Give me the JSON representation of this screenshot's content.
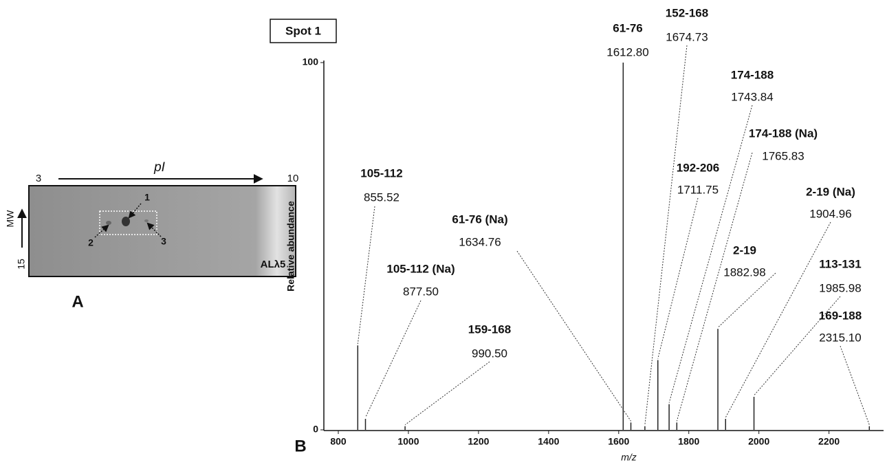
{
  "gel": {
    "axis_label": "pI",
    "left_ph": "3",
    "right_ph": "10",
    "mw_label": "MW",
    "mw_value": "15",
    "sample": "ALλ5",
    "spots": [
      "1",
      "2",
      "3"
    ],
    "panel": "A"
  },
  "chart_data": {
    "type": "spectrum",
    "panel": "B",
    "title": "Spot 1",
    "x_label": "m/z",
    "y_label": "Relative abundance",
    "x": [
      855.52,
      877.5,
      990.5,
      1612.8,
      1634.76,
      1674.73,
      1711.75,
      1743.84,
      1765.83,
      1882.98,
      1904.96,
      1985.98,
      2315.1
    ],
    "x_labels": [
      "855.52",
      "877.50",
      "990.50",
      "1612.80",
      "1634.76",
      "1674.73",
      "1711.75",
      "1743.84",
      "1765.83",
      "1882.98",
      "1904.96",
      "1985.98",
      "2315.10"
    ],
    "values": [
      23,
      3,
      1,
      100,
      2,
      1,
      19,
      7,
      2,
      27.5,
      3,
      9,
      1
    ],
    "annotations": [
      "105-112",
      "105-112 (Na)",
      "159-168",
      "61-76",
      "61-76 (Na)",
      "152-168",
      "192-206",
      "174-188",
      "174-188 (Na)",
      "2-19",
      "2-19 (Na)",
      "113-131",
      "169-188"
    ],
    "color": "#222222",
    "xlim": [
      800,
      2340
    ],
    "xticks": [
      800,
      1000,
      1200,
      1400,
      1600,
      1800,
      2000,
      2200
    ],
    "ylim": [
      0,
      100
    ],
    "yticks": [
      0,
      100
    ]
  }
}
